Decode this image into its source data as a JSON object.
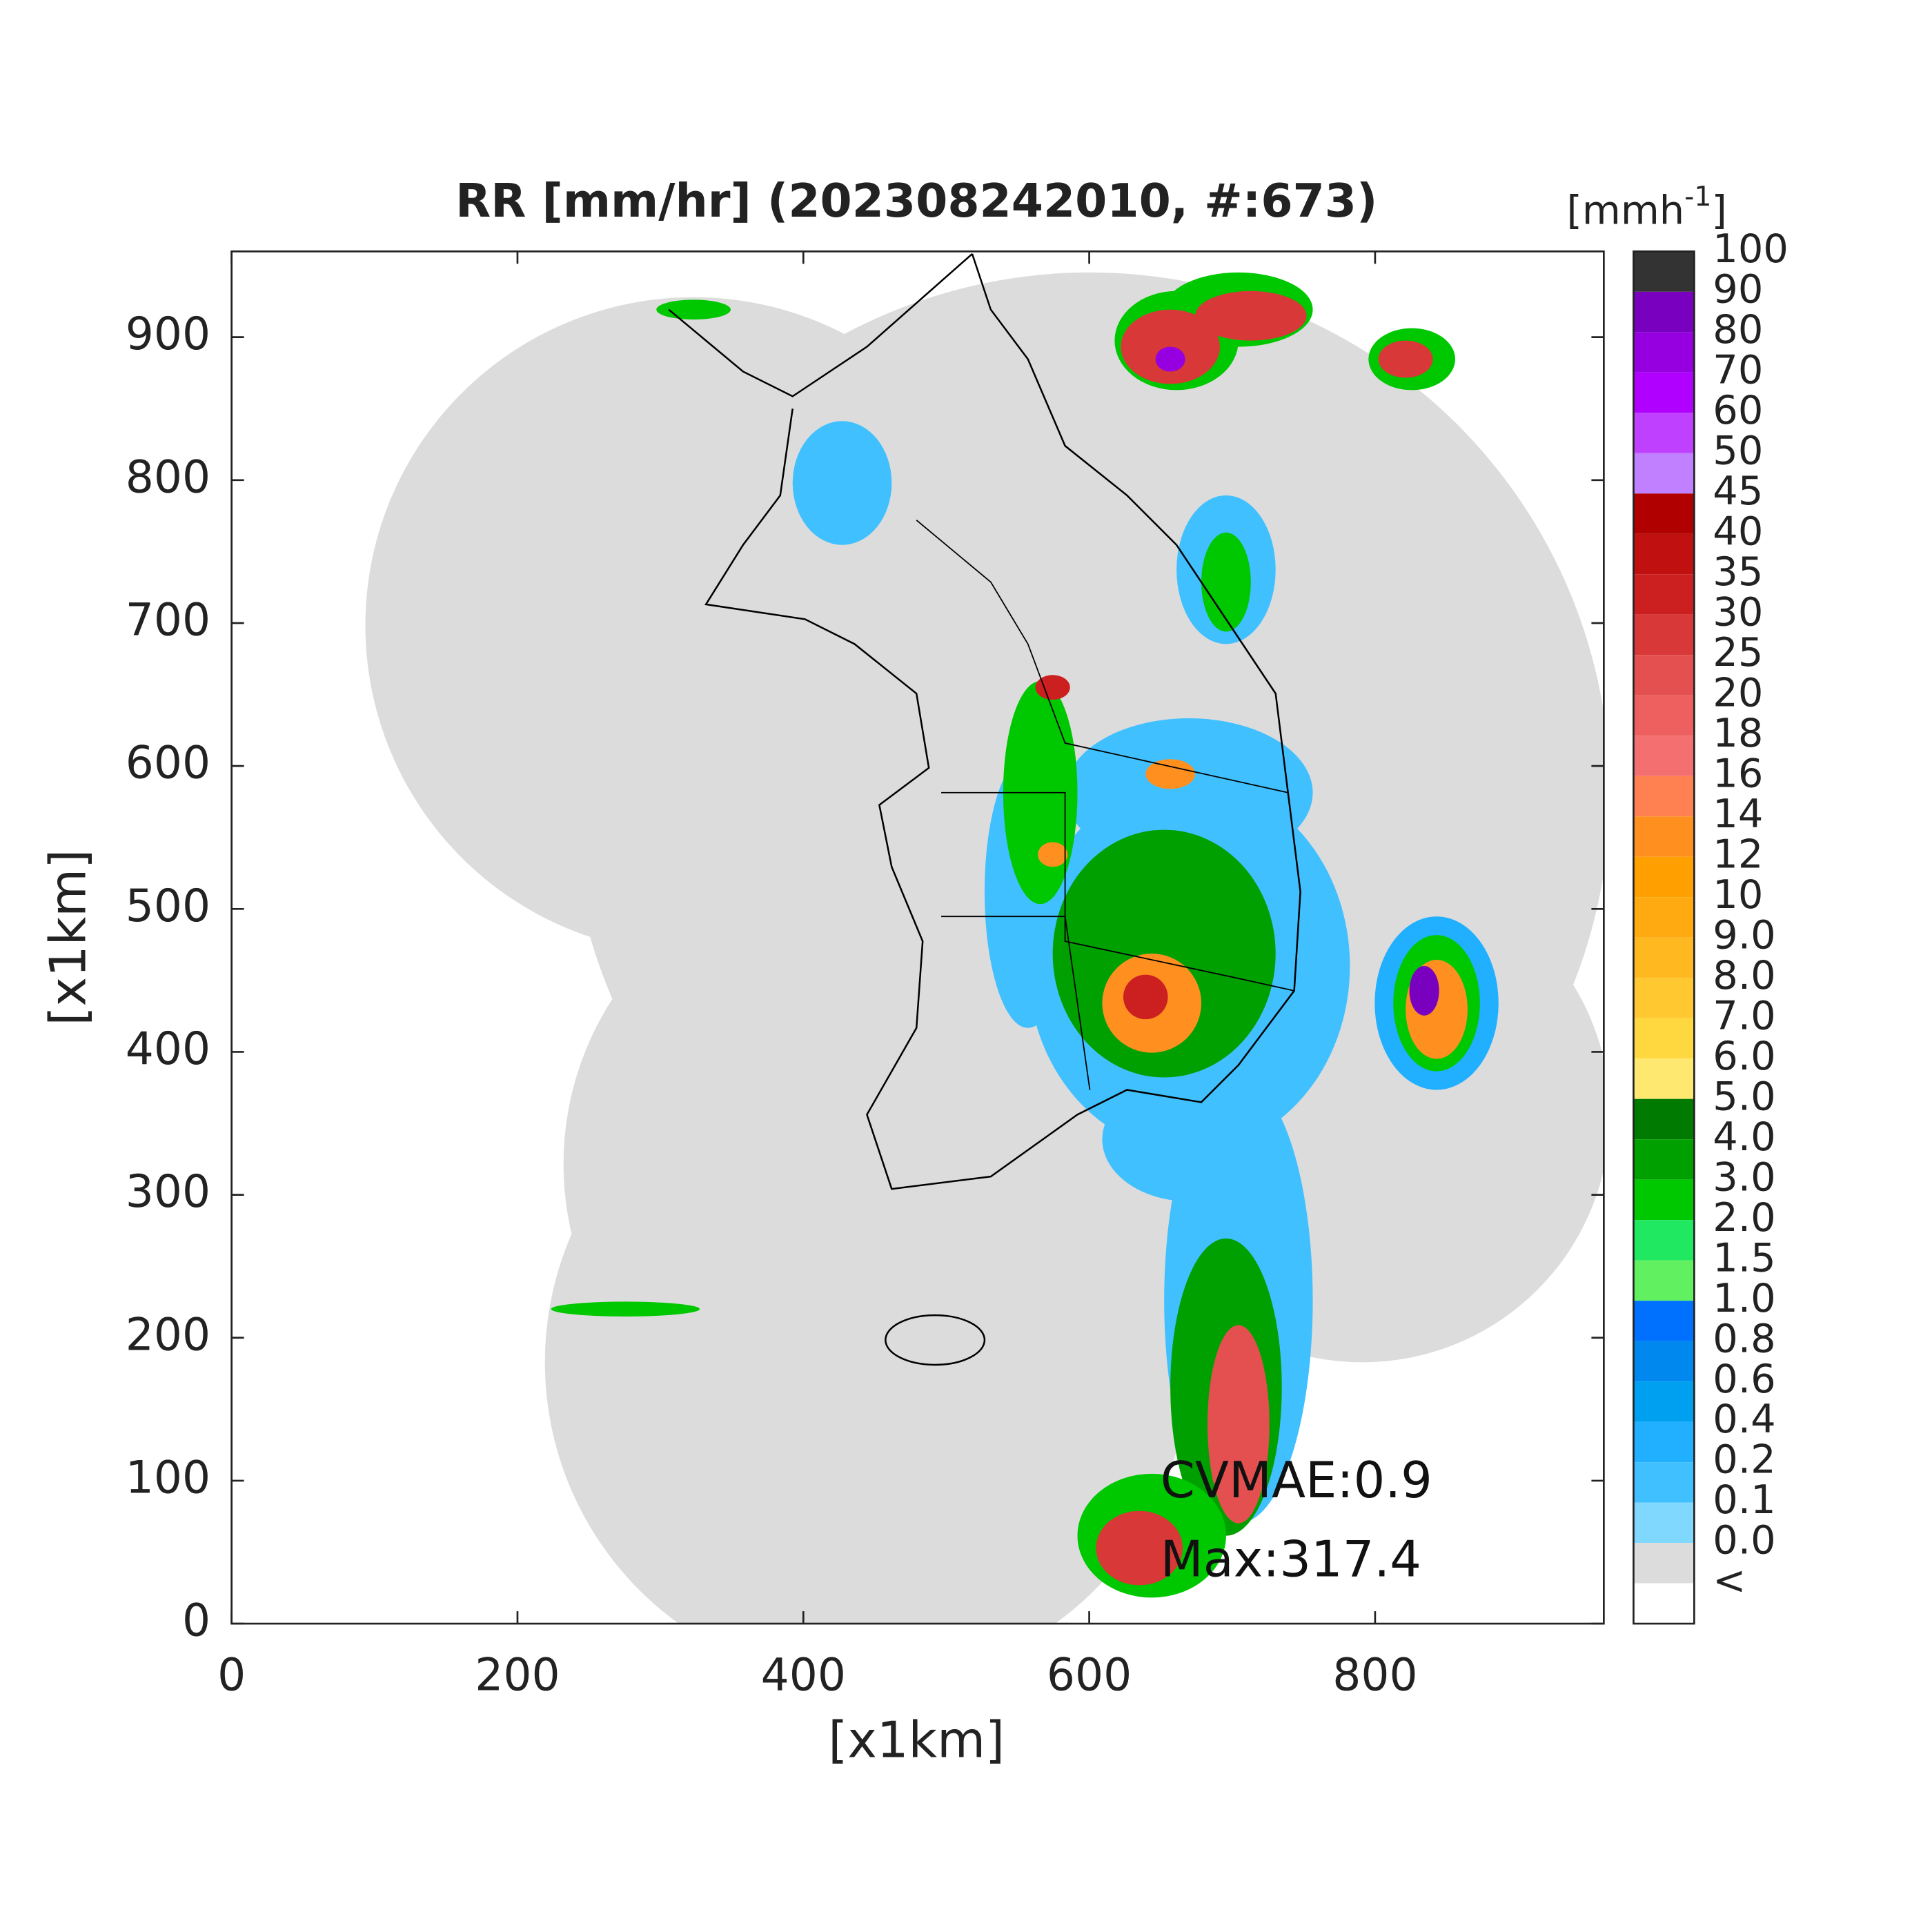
{
  "title": "RR [mm/hr] (202308242010, #:673)",
  "x_axis": {
    "label": "[x1km]",
    "lim": [
      0,
      960
    ],
    "ticks": [
      0,
      200,
      400,
      600,
      800
    ]
  },
  "y_axis": {
    "label": "[x1km]",
    "lim": [
      0,
      960
    ],
    "ticks": [
      0,
      100,
      200,
      300,
      400,
      500,
      600,
      700,
      800,
      900
    ]
  },
  "colorbar": {
    "unit": {
      "base": "[mmh",
      "exponent": "-1",
      "close": "]"
    },
    "levels": [
      "100",
      "90",
      "80",
      "70",
      "60",
      "50",
      "45",
      "40",
      "35",
      "30",
      "25",
      "20",
      "18",
      "16",
      "14",
      "12",
      "10",
      "9.0",
      "8.0",
      "7.0",
      "6.0",
      "5.0",
      "4.0",
      "3.0",
      "2.0",
      "1.5",
      "1.0",
      "0.8",
      "0.6",
      "0.4",
      "0.2",
      "0.1",
      "0.0",
      "<"
    ],
    "colors": [
      "#333333",
      "#7a00c0",
      "#9600e0",
      "#b000ff",
      "#c040ff",
      "#c080ff",
      "#b00000",
      "#c01010",
      "#cc2020",
      "#d83838",
      "#e45050",
      "#ee6060",
      "#f47070",
      "#ff8050",
      "#ff9020",
      "#ffa000",
      "#ffaa10",
      "#ffb820",
      "#ffc830",
      "#ffd840",
      "#ffe870",
      "#007a00",
      "#00a000",
      "#00c800",
      "#20e860",
      "#60f060",
      "#0070ff",
      "#0088ee",
      "#00a0f0",
      "#20b0ff",
      "#40c0ff",
      "#80d8ff",
      "#dcdcdc",
      "#ffffff"
    ]
  },
  "annotations": [
    "CVMAE:0.9",
    "Max:317.4"
  ]
}
